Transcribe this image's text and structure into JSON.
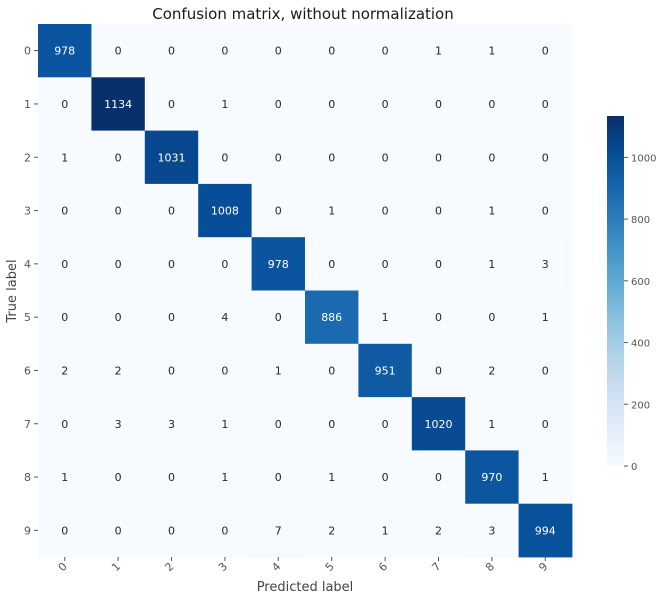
{
  "chart_data": {
    "type": "heatmap",
    "title": "Confusion matrix, without normalization",
    "xlabel": "Predicted label",
    "ylabel": "True label",
    "x_categories": [
      "0",
      "1",
      "2",
      "3",
      "4",
      "5",
      "6",
      "7",
      "8",
      "9"
    ],
    "y_categories": [
      "0",
      "1",
      "2",
      "3",
      "4",
      "5",
      "6",
      "7",
      "8",
      "9"
    ],
    "matrix": [
      [
        978,
        0,
        0,
        0,
        0,
        0,
        0,
        1,
        1,
        0
      ],
      [
        0,
        1134,
        0,
        1,
        0,
        0,
        0,
        0,
        0,
        0
      ],
      [
        1,
        0,
        1031,
        0,
        0,
        0,
        0,
        0,
        0,
        0
      ],
      [
        0,
        0,
        0,
        1008,
        0,
        1,
        0,
        0,
        1,
        0
      ],
      [
        0,
        0,
        0,
        0,
        978,
        0,
        0,
        0,
        1,
        3
      ],
      [
        0,
        0,
        0,
        4,
        0,
        886,
        1,
        0,
        0,
        1
      ],
      [
        2,
        2,
        0,
        0,
        1,
        0,
        951,
        0,
        2,
        0
      ],
      [
        0,
        3,
        3,
        1,
        0,
        0,
        0,
        1020,
        1,
        0
      ],
      [
        1,
        0,
        0,
        1,
        0,
        1,
        0,
        0,
        970,
        1
      ],
      [
        0,
        0,
        0,
        0,
        7,
        2,
        1,
        2,
        3,
        994
      ]
    ],
    "colormap": "Blues",
    "color_low": "#f7fbff",
    "color_high": "#08306b",
    "vmin": 0,
    "vmax": 1134,
    "colorbar_ticks": [
      0,
      200,
      400,
      600,
      800,
      1000
    ],
    "grid": false
  }
}
